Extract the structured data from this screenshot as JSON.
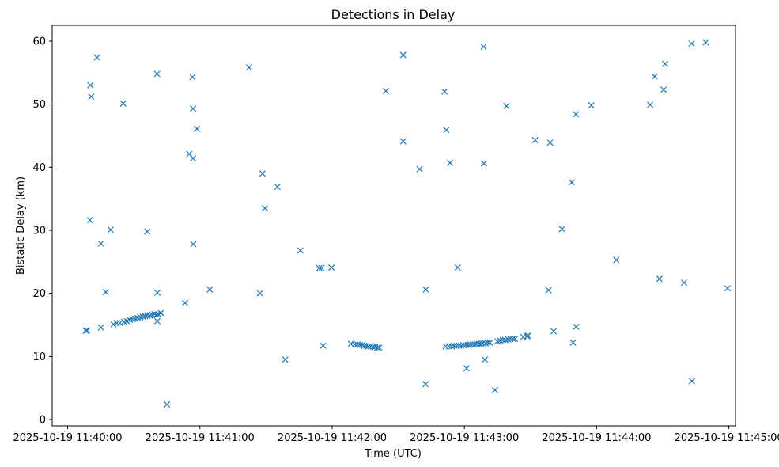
{
  "chart_data": {
    "type": "scatter",
    "title": "Detections in Delay",
    "xlabel": "Time (UTC)",
    "ylabel": "Bistatic Delay (km)",
    "marker": "x",
    "color": "#1f77b4",
    "grid": false,
    "x_unit": "seconds after 2025-10-19 11:40:00",
    "xlim": [
      -7,
      303
    ],
    "ylim": [
      -1,
      62.5
    ],
    "xticks": [
      {
        "value": 0,
        "label": "2025-10-19 11:40:00"
      },
      {
        "value": 60,
        "label": "2025-10-19 11:41:00"
      },
      {
        "value": 120,
        "label": "2025-10-19 11:42:00"
      },
      {
        "value": 180,
        "label": "2025-10-19 11:43:00"
      },
      {
        "value": 240,
        "label": "2025-10-19 11:44:00"
      },
      {
        "value": 300,
        "label": "2025-10-19 11:45:00"
      }
    ],
    "yticks": [
      {
        "value": 0,
        "label": "0"
      },
      {
        "value": 10,
        "label": "10"
      },
      {
        "value": 20,
        "label": "20"
      },
      {
        "value": 30,
        "label": "30"
      },
      {
        "value": 40,
        "label": "40"
      },
      {
        "value": 50,
        "label": "50"
      },
      {
        "value": 60,
        "label": "60"
      }
    ],
    "series": [
      {
        "name": "Detections",
        "points": [
          [
            8.2,
            14.1
          ],
          [
            8.8,
            14.1
          ],
          [
            10.3,
            53.0
          ],
          [
            10.7,
            51.2
          ],
          [
            10.1,
            31.6
          ],
          [
            13.3,
            57.4
          ],
          [
            15.1,
            27.9
          ],
          [
            15.1,
            14.6
          ],
          [
            17.3,
            20.2
          ],
          [
            19.5,
            30.1
          ],
          [
            20.8,
            15.1
          ],
          [
            22.3,
            15.3
          ],
          [
            23.7,
            15.3
          ],
          [
            25.2,
            50.1
          ],
          [
            25.6,
            15.5
          ],
          [
            26.9,
            15.6
          ],
          [
            28.2,
            15.8
          ],
          [
            29.4,
            15.9
          ],
          [
            30.6,
            16.0
          ],
          [
            31.8,
            16.1
          ],
          [
            33.0,
            16.2
          ],
          [
            34.1,
            16.3
          ],
          [
            35.2,
            16.4
          ],
          [
            36.2,
            16.5
          ],
          [
            36.1,
            29.8
          ],
          [
            37.3,
            16.5
          ],
          [
            38.4,
            16.6
          ],
          [
            39.4,
            16.7
          ],
          [
            40.3,
            16.6
          ],
          [
            41.1,
            16.7
          ],
          [
            40.6,
            54.8
          ],
          [
            40.7,
            20.1
          ],
          [
            40.7,
            15.6
          ],
          [
            42.3,
            16.9
          ],
          [
            45.1,
            2.4
          ],
          [
            53.3,
            18.5
          ],
          [
            55.2,
            42.1
          ],
          [
            56.6,
            54.3
          ],
          [
            56.9,
            49.3
          ],
          [
            56.9,
            41.4
          ],
          [
            57.0,
            27.8
          ],
          [
            58.7,
            46.1
          ],
          [
            64.5,
            20.6
          ],
          [
            82.3,
            55.8
          ],
          [
            87.2,
            20.0
          ],
          [
            88.4,
            39.0
          ],
          [
            89.5,
            33.5
          ],
          [
            95.2,
            36.9
          ],
          [
            98.7,
            9.5
          ],
          [
            105.6,
            26.8
          ],
          [
            114.2,
            24.0
          ],
          [
            115.2,
            24.0
          ],
          [
            115.9,
            11.7
          ],
          [
            119.7,
            24.1
          ],
          [
            128.5,
            12.0
          ],
          [
            130.3,
            11.9
          ],
          [
            131.4,
            11.9
          ],
          [
            132.6,
            11.8
          ],
          [
            133.7,
            11.8
          ],
          [
            134.6,
            11.7
          ],
          [
            135.6,
            11.7
          ],
          [
            136.5,
            11.6
          ],
          [
            137.5,
            11.6
          ],
          [
            138.5,
            11.5
          ],
          [
            139.5,
            11.5
          ],
          [
            140.5,
            11.4
          ],
          [
            141.4,
            11.4
          ],
          [
            144.4,
            52.1
          ],
          [
            152.2,
            57.8
          ],
          [
            152.2,
            44.1
          ],
          [
            159.7,
            39.7
          ],
          [
            162.4,
            5.6
          ],
          [
            162.5,
            20.6
          ],
          [
            171.0,
            52.0
          ],
          [
            171.5,
            11.6
          ],
          [
            171.8,
            45.9
          ],
          [
            173.0,
            11.6
          ],
          [
            173.5,
            40.7
          ],
          [
            174.2,
            11.6
          ],
          [
            175.3,
            11.7
          ],
          [
            176.4,
            11.7
          ],
          [
            177.0,
            24.1
          ],
          [
            177.5,
            11.7
          ],
          [
            178.5,
            11.7
          ],
          [
            179.6,
            11.8
          ],
          [
            180.6,
            11.8
          ],
          [
            181.0,
            8.1
          ],
          [
            181.7,
            11.8
          ],
          [
            182.7,
            11.9
          ],
          [
            183.7,
            11.9
          ],
          [
            184.7,
            11.9
          ],
          [
            185.7,
            12.0
          ],
          [
            186.7,
            12.0
          ],
          [
            187.6,
            12.0
          ],
          [
            188.4,
            12.1
          ],
          [
            188.7,
            59.1
          ],
          [
            188.8,
            40.6
          ],
          [
            189.3,
            9.5
          ],
          [
            189.6,
            12.1
          ],
          [
            190.6,
            12.2
          ],
          [
            191.6,
            12.2
          ],
          [
            193.9,
            4.7
          ],
          [
            195.0,
            12.4
          ],
          [
            196.2,
            12.5
          ],
          [
            197.4,
            12.6
          ],
          [
            198.6,
            12.6
          ],
          [
            199.1,
            49.7
          ],
          [
            199.8,
            12.7
          ],
          [
            200.9,
            12.8
          ],
          [
            202.0,
            12.8
          ],
          [
            203.0,
            12.8
          ],
          [
            206.7,
            13.1
          ],
          [
            208.4,
            13.2
          ],
          [
            208.9,
            13.3
          ],
          [
            212.1,
            44.3
          ],
          [
            218.9,
            43.9
          ],
          [
            218.2,
            20.5
          ],
          [
            220.5,
            14.0
          ],
          [
            224.3,
            30.2
          ],
          [
            228.7,
            37.6
          ],
          [
            229.3,
            12.2
          ],
          [
            230.6,
            48.4
          ],
          [
            230.7,
            14.7
          ],
          [
            237.6,
            49.8
          ],
          [
            248.9,
            25.3
          ],
          [
            264.3,
            49.9
          ],
          [
            266.3,
            54.4
          ],
          [
            268.5,
            22.3
          ],
          [
            270.4,
            52.3
          ],
          [
            271.1,
            56.4
          ],
          [
            279.7,
            21.7
          ],
          [
            283.1,
            59.6
          ],
          [
            283.2,
            6.1
          ],
          [
            289.5,
            59.8
          ],
          [
            299.4,
            20.8
          ]
        ]
      }
    ]
  }
}
